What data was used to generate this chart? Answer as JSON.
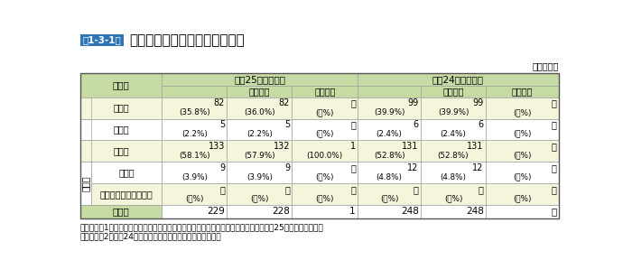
{
  "title_box_text": "第1-3-1表",
  "title_main": "石油コンビナート事故発生状況",
  "each_year": "（各年中）",
  "note_line1": "（備考）　1　「石油コンビナート等特別防災区域の特定事業所における事故概要（平成25年中）」より作成",
  "note_line2": "　　　　　2　平成24年中の事故では、地震事故はなかった。",
  "header_h25": "平成25年中の事故",
  "header_h24": "平成24年中の事故",
  "sub_general": "一般事故",
  "sub_quake": "地震事故",
  "col_kind": "種　別",
  "row_label_sonota": "その他",
  "rows": [
    {
      "label": "火　災",
      "vals": [
        "82",
        "82",
        "－",
        "99",
        "99",
        "－"
      ],
      "pcts": [
        "(35.8%)",
        "(36.0%)",
        "(－%)",
        "(39.9%)",
        "(39.9%)",
        "(－%)"
      ],
      "sonota": false
    },
    {
      "label": "爆　発",
      "vals": [
        "5",
        "5",
        "－",
        "6",
        "6",
        "－"
      ],
      "pcts": [
        "(2.2%)",
        "(2.2%)",
        "(－%)",
        "(2.4%)",
        "(2.4%)",
        "(－%)"
      ],
      "sonota": false
    },
    {
      "label": "漏えい",
      "vals": [
        "133",
        "132",
        "1",
        "131",
        "131",
        "－"
      ],
      "pcts": [
        "(58.1%)",
        "(57.9%)",
        "(100.0%)",
        "(52.8%)",
        "(52.8%)",
        "(－%)"
      ],
      "sonota": false
    },
    {
      "label": "破　損",
      "vals": [
        "9",
        "9",
        "－",
        "12",
        "12",
        "－"
      ],
      "pcts": [
        "(3.9%)",
        "(3.9%)",
        "(－%)",
        "(4.8%)",
        "(4.8%)",
        "(－%)"
      ],
      "sonota": true
    },
    {
      "label": "上記に該当しないもの",
      "vals": [
        "－",
        "－",
        "－",
        "－",
        "－",
        "－"
      ],
      "pcts": [
        "(－%)",
        "(－%)",
        "(－%)",
        "(－%)",
        "(－%)",
        "(－%)"
      ],
      "sonota": true
    }
  ],
  "total_label": "合　計",
  "total_vals": [
    "229",
    "228",
    "1",
    "248",
    "248",
    "－"
  ],
  "bg_header": "#c6dba4",
  "bg_row_alt": "#f5f5dc",
  "bg_row_white": "#ffffff",
  "bg_total": "#c6dba4",
  "title_box_bg": "#2e75b6",
  "title_box_fg": "#ffffff",
  "border_color": "#a0a0a0"
}
